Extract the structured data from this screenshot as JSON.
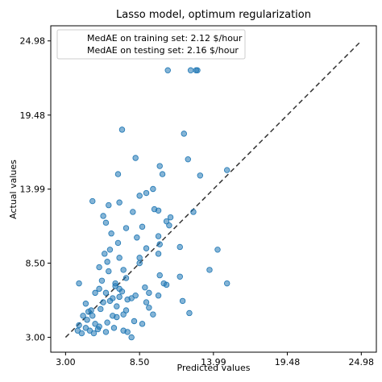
{
  "chart_data": {
    "type": "scatter",
    "title": "Lasso model, optimum regularization",
    "xlabel": "Predicted values",
    "ylabel": "Actual values",
    "xlim": [
      1.9,
      26.1
    ],
    "ylim": [
      1.9,
      26.1
    ],
    "x_ticks": [
      3.0,
      8.5,
      13.99,
      19.48,
      24.98
    ],
    "y_ticks": [
      3.0,
      8.5,
      13.99,
      19.48,
      24.98
    ],
    "x_tick_labels": [
      "3.00",
      "8.50",
      "13.99",
      "19.48",
      "24.98"
    ],
    "y_tick_labels": [
      "3.00",
      "8.50",
      "13.99",
      "19.48",
      "24.98"
    ],
    "grid": false,
    "legend_position": "top-left",
    "legend_entries": [
      "MedAE on training set: 2.12 $/hour",
      "MedAE on testing set: 2.16 $/hour"
    ],
    "reference_line": {
      "style": "dashed",
      "color": "#333333",
      "from": [
        3.0,
        3.0
      ],
      "to": [
        24.98,
        24.98
      ]
    },
    "point_color": "#1f77b4",
    "points": [
      [
        10.6,
        22.8
      ],
      [
        12.3,
        22.8
      ],
      [
        12.7,
        22.8
      ],
      [
        12.8,
        22.8
      ],
      [
        7.2,
        18.4
      ],
      [
        11.8,
        18.1
      ],
      [
        8.2,
        16.3
      ],
      [
        12.1,
        16.2
      ],
      [
        10.0,
        15.7
      ],
      [
        10.2,
        15.1
      ],
      [
        13.0,
        15.0
      ],
      [
        15.0,
        15.4
      ],
      [
        6.9,
        15.1
      ],
      [
        9.5,
        14.0
      ],
      [
        8.5,
        13.5
      ],
      [
        9.0,
        13.7
      ],
      [
        5.0,
        13.1
      ],
      [
        7.0,
        13.0
      ],
      [
        6.2,
        12.8
      ],
      [
        8.0,
        12.3
      ],
      [
        9.6,
        12.5
      ],
      [
        9.9,
        12.4
      ],
      [
        12.5,
        12.3
      ],
      [
        5.8,
        12.0
      ],
      [
        10.8,
        11.9
      ],
      [
        10.5,
        11.6
      ],
      [
        6.0,
        11.5
      ],
      [
        7.5,
        11.1
      ],
      [
        8.7,
        11.2
      ],
      [
        10.7,
        11.3
      ],
      [
        6.4,
        10.7
      ],
      [
        9.9,
        10.5
      ],
      [
        8.3,
        10.4
      ],
      [
        6.9,
        10.0
      ],
      [
        10.0,
        9.9
      ],
      [
        9.0,
        9.6
      ],
      [
        11.5,
        9.7
      ],
      [
        14.3,
        9.5
      ],
      [
        6.3,
        9.5
      ],
      [
        9.9,
        9.2
      ],
      [
        5.9,
        9.2
      ],
      [
        7.0,
        8.9
      ],
      [
        8.5,
        8.9
      ],
      [
        6.1,
        8.6
      ],
      [
        8.5,
        8.5
      ],
      [
        13.7,
        8.0
      ],
      [
        5.5,
        8.2
      ],
      [
        7.3,
        8.0
      ],
      [
        7.5,
        7.4
      ],
      [
        10.0,
        7.6
      ],
      [
        11.5,
        7.5
      ],
      [
        5.7,
        7.2
      ],
      [
        4.0,
        7.0
      ],
      [
        6.7,
        7.0
      ],
      [
        6.7,
        6.8
      ],
      [
        7.0,
        6.6
      ],
      [
        5.5,
        6.6
      ],
      [
        8.9,
        6.7
      ],
      [
        10.5,
        6.9
      ],
      [
        15.0,
        7.0
      ],
      [
        6.0,
        6.3
      ],
      [
        5.2,
        6.3
      ],
      [
        7.0,
        6.0
      ],
      [
        8.2,
        6.1
      ],
      [
        9.2,
        6.3
      ],
      [
        9.9,
        6.1
      ],
      [
        7.9,
        5.9
      ],
      [
        5.8,
        5.6
      ],
      [
        6.3,
        5.7
      ],
      [
        7.6,
        5.8
      ],
      [
        11.7,
        5.7
      ],
      [
        9.0,
        5.6
      ],
      [
        4.5,
        5.5
      ],
      [
        5.6,
        5.1
      ],
      [
        6.8,
        5.3
      ],
      [
        4.9,
        5.0
      ],
      [
        7.5,
        5.0
      ],
      [
        9.2,
        5.2
      ],
      [
        12.2,
        4.8
      ],
      [
        4.3,
        4.6
      ],
      [
        5.0,
        4.6
      ],
      [
        6.5,
        4.6
      ],
      [
        7.3,
        4.7
      ],
      [
        9.5,
        4.7
      ],
      [
        4.6,
        4.3
      ],
      [
        5.2,
        4.0
      ],
      [
        6.1,
        4.1
      ],
      [
        6.8,
        4.5
      ],
      [
        8.1,
        4.2
      ],
      [
        4.0,
        3.9
      ],
      [
        4.5,
        3.7
      ],
      [
        5.5,
        3.8
      ],
      [
        6.6,
        3.7
      ],
      [
        3.9,
        3.5
      ],
      [
        4.8,
        3.5
      ],
      [
        7.3,
        3.5
      ],
      [
        4.2,
        3.3
      ],
      [
        5.1,
        3.3
      ],
      [
        7.6,
        3.4
      ],
      [
        7.9,
        3.0
      ],
      [
        5.4,
        3.6
      ],
      [
        6.0,
        3.4
      ],
      [
        8.7,
        4.0
      ],
      [
        4.7,
        4.9
      ],
      [
        6.5,
        5.9
      ],
      [
        7.2,
        6.4
      ],
      [
        10.3,
        7.0
      ],
      [
        6.2,
        7.9
      ]
    ]
  }
}
